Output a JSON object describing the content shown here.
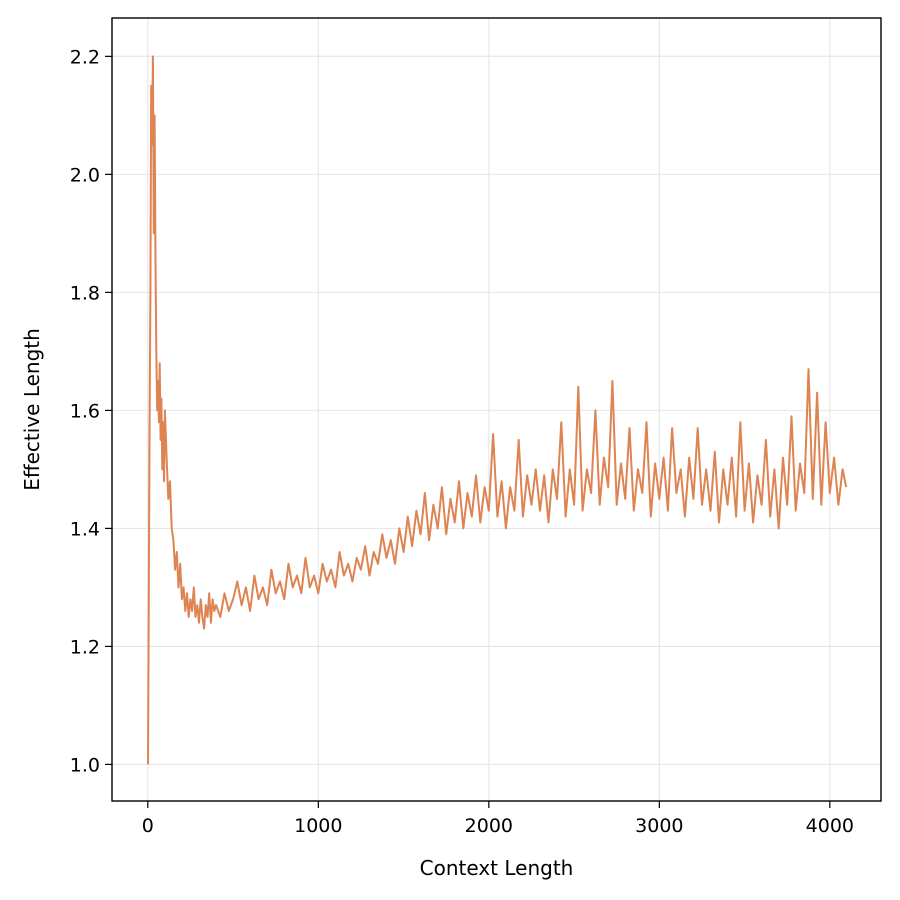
{
  "chart_data": {
    "type": "line",
    "title": "",
    "xlabel": "Context Length",
    "ylabel": "Effective Length",
    "xlim": [
      -210,
      4300
    ],
    "ylim": [
      0.938,
      2.265
    ],
    "xticks": [
      0,
      1000,
      2000,
      3000,
      4000
    ],
    "yticks": [
      1.0,
      1.2,
      1.4,
      1.6,
      1.8,
      2.0,
      2.2
    ],
    "xtick_labels": [
      "0",
      "1000",
      "2000",
      "3000",
      "4000"
    ],
    "ytick_labels": [
      "1.0",
      "1.2",
      "1.4",
      "1.6",
      "1.8",
      "2.0",
      "2.2"
    ],
    "grid": true,
    "legend": "none",
    "line_color": "#dd8452",
    "series": [
      {
        "x": [
          1,
          5,
          10,
          15,
          20,
          25,
          30,
          35,
          40,
          45,
          50,
          55,
          60,
          65,
          70,
          75,
          80,
          85,
          90,
          95,
          100,
          110,
          120,
          130,
          140,
          150,
          160,
          170,
          180,
          190,
          200,
          210,
          220,
          230,
          240,
          250,
          260,
          270,
          280,
          290,
          300,
          310,
          320,
          330,
          340,
          350,
          360,
          370,
          380,
          390,
          400,
          425,
          450,
          475,
          500,
          525,
          550,
          575,
          600,
          625,
          650,
          675,
          700,
          725,
          750,
          775,
          800,
          825,
          850,
          875,
          900,
          925,
          950,
          975,
          1000,
          1025,
          1050,
          1075,
          1100,
          1125,
          1150,
          1175,
          1200,
          1225,
          1250,
          1275,
          1300,
          1325,
          1350,
          1375,
          1400,
          1425,
          1450,
          1475,
          1500,
          1525,
          1550,
          1575,
          1600,
          1625,
          1650,
          1675,
          1700,
          1725,
          1750,
          1775,
          1800,
          1825,
          1850,
          1875,
          1900,
          1925,
          1950,
          1975,
          2000,
          2025,
          2050,
          2075,
          2100,
          2125,
          2150,
          2175,
          2200,
          2225,
          2250,
          2275,
          2300,
          2325,
          2350,
          2375,
          2400,
          2425,
          2450,
          2475,
          2500,
          2525,
          2550,
          2575,
          2600,
          2625,
          2650,
          2675,
          2700,
          2725,
          2750,
          2775,
          2800,
          2825,
          2850,
          2875,
          2900,
          2925,
          2950,
          2975,
          3000,
          3025,
          3050,
          3075,
          3100,
          3125,
          3150,
          3175,
          3200,
          3225,
          3250,
          3275,
          3300,
          3325,
          3350,
          3375,
          3400,
          3425,
          3450,
          3475,
          3500,
          3525,
          3550,
          3575,
          3600,
          3625,
          3650,
          3675,
          3700,
          3725,
          3750,
          3775,
          3800,
          3825,
          3850,
          3875,
          3900,
          3925,
          3950,
          3975,
          4000,
          4025,
          4050,
          4075,
          4096
        ],
        "y": [
          1.0,
          1.25,
          1.55,
          1.8,
          2.15,
          2.05,
          2.2,
          1.9,
          2.1,
          1.85,
          1.7,
          1.6,
          1.65,
          1.58,
          1.68,
          1.55,
          1.62,
          1.5,
          1.58,
          1.48,
          1.6,
          1.52,
          1.45,
          1.48,
          1.4,
          1.38,
          1.33,
          1.36,
          1.3,
          1.34,
          1.28,
          1.3,
          1.26,
          1.29,
          1.25,
          1.28,
          1.26,
          1.3,
          1.25,
          1.27,
          1.24,
          1.28,
          1.25,
          1.23,
          1.27,
          1.25,
          1.29,
          1.24,
          1.28,
          1.26,
          1.27,
          1.25,
          1.29,
          1.26,
          1.28,
          1.31,
          1.27,
          1.3,
          1.26,
          1.32,
          1.28,
          1.3,
          1.27,
          1.33,
          1.29,
          1.31,
          1.28,
          1.34,
          1.3,
          1.32,
          1.29,
          1.35,
          1.3,
          1.32,
          1.29,
          1.34,
          1.31,
          1.33,
          1.3,
          1.36,
          1.32,
          1.34,
          1.31,
          1.35,
          1.33,
          1.37,
          1.32,
          1.36,
          1.34,
          1.39,
          1.35,
          1.38,
          1.34,
          1.4,
          1.36,
          1.42,
          1.37,
          1.43,
          1.39,
          1.46,
          1.38,
          1.44,
          1.4,
          1.47,
          1.39,
          1.45,
          1.41,
          1.48,
          1.4,
          1.46,
          1.42,
          1.49,
          1.41,
          1.47,
          1.43,
          1.56,
          1.42,
          1.48,
          1.4,
          1.47,
          1.43,
          1.55,
          1.42,
          1.49,
          1.44,
          1.5,
          1.43,
          1.49,
          1.41,
          1.5,
          1.45,
          1.58,
          1.42,
          1.5,
          1.44,
          1.64,
          1.43,
          1.5,
          1.46,
          1.6,
          1.44,
          1.52,
          1.47,
          1.65,
          1.44,
          1.51,
          1.45,
          1.57,
          1.43,
          1.5,
          1.46,
          1.58,
          1.42,
          1.51,
          1.45,
          1.52,
          1.43,
          1.57,
          1.46,
          1.5,
          1.42,
          1.52,
          1.45,
          1.57,
          1.44,
          1.5,
          1.43,
          1.53,
          1.41,
          1.5,
          1.44,
          1.52,
          1.42,
          1.58,
          1.43,
          1.51,
          1.41,
          1.49,
          1.44,
          1.55,
          1.42,
          1.5,
          1.4,
          1.52,
          1.44,
          1.59,
          1.43,
          1.51,
          1.46,
          1.67,
          1.45,
          1.63,
          1.44,
          1.58,
          1.46,
          1.52,
          1.44,
          1.5,
          1.47
        ]
      }
    ]
  }
}
